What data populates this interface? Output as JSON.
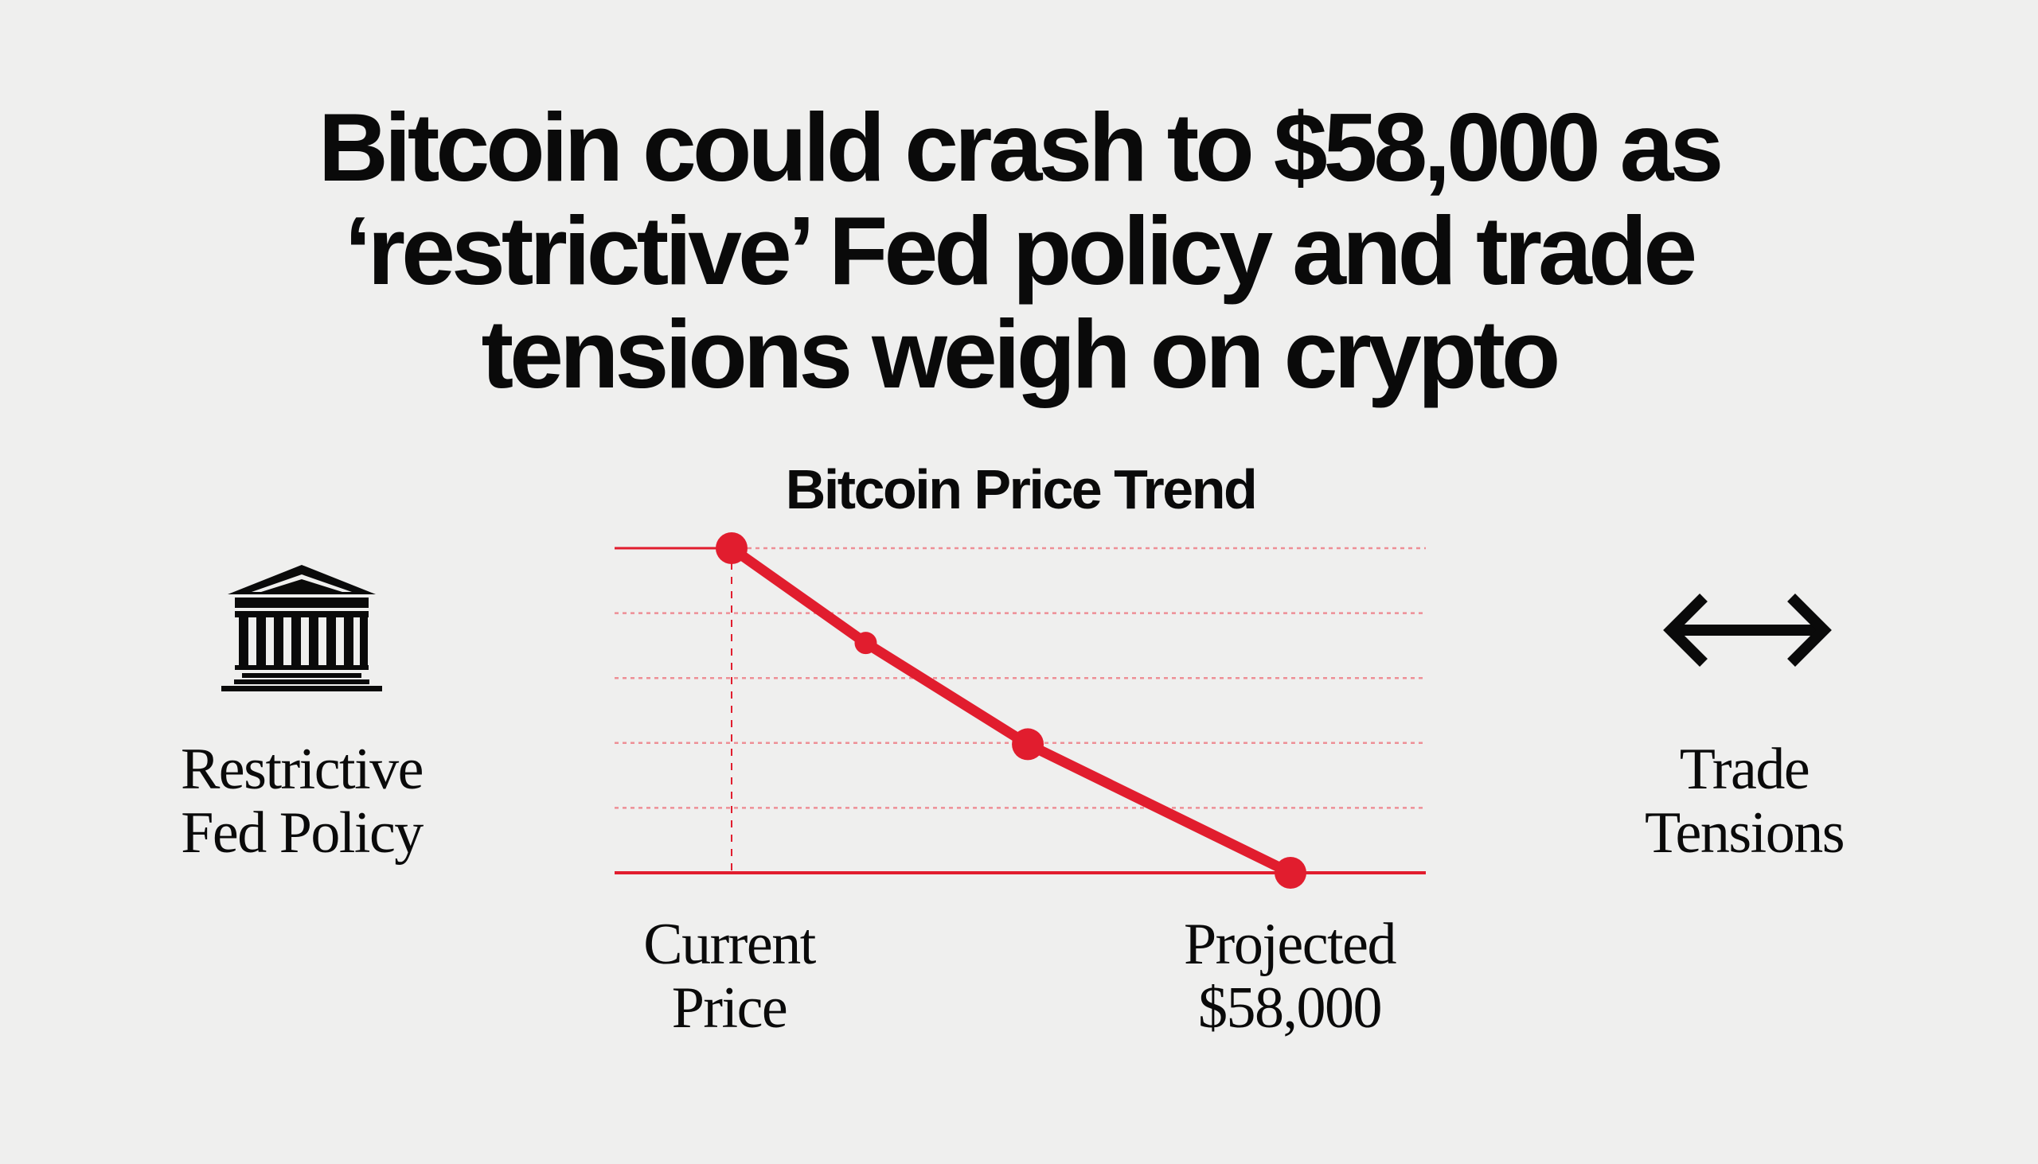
{
  "headline": {
    "lines": [
      "Bitcoin could crash to $58,000 as",
      "‘restrictive’ Fed policy and trade",
      "tensions weigh on crypto"
    ]
  },
  "left_panel": {
    "icon": "bank-building-icon",
    "label_lines": [
      "Restrictive",
      "Fed Policy"
    ]
  },
  "right_panel": {
    "icon": "left-right-arrow-icon",
    "label_lines": [
      "Trade",
      "Tensions"
    ]
  },
  "chart_data": {
    "type": "line",
    "title": "Bitcoin Price Trend",
    "x": [
      0,
      0.24,
      0.53,
      1
    ],
    "values": [
      5,
      3.54,
      1.98,
      0
    ],
    "ylim": [
      0,
      5
    ],
    "grid": true,
    "annotations": [
      {
        "lines": [
          "Current",
          "Price"
        ],
        "at_point": 0
      },
      {
        "lines": [
          "Projected",
          "$58,000"
        ],
        "at_point": 3
      }
    ],
    "colors": {
      "line": "#e11d2e",
      "grid": "#ee8f96",
      "text": "#0a0a0a",
      "background": "#efefee"
    }
  }
}
